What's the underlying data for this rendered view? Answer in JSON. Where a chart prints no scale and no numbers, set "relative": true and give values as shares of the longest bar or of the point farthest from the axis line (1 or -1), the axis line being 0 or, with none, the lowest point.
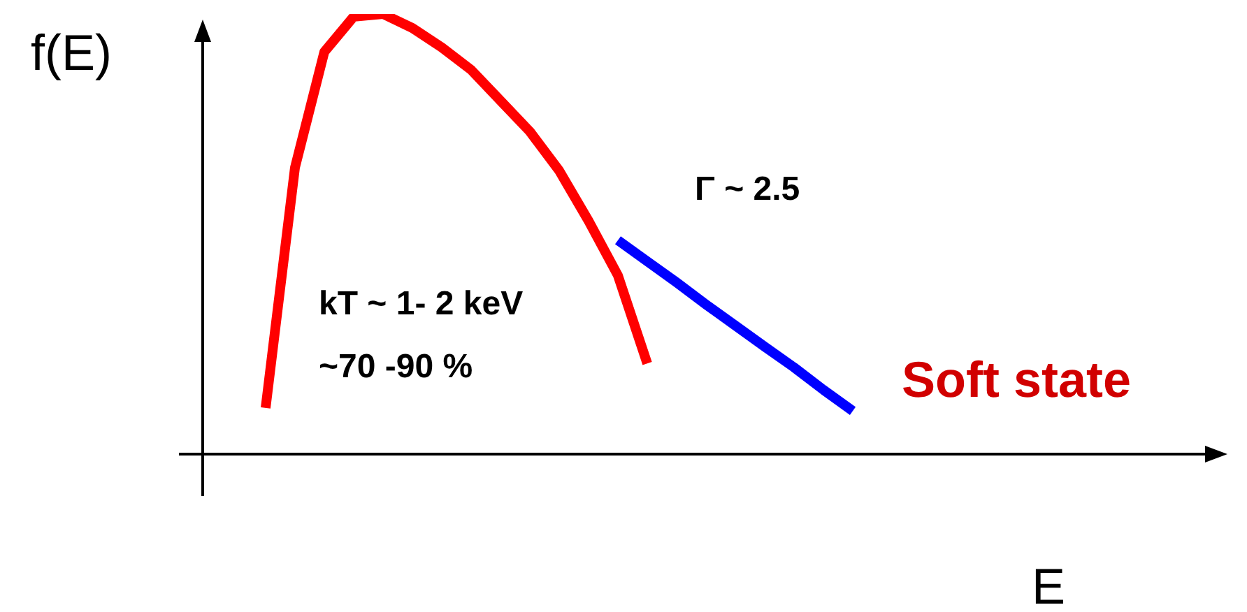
{
  "chart_data": {
    "type": "line",
    "relative": true,
    "xlabel": "E",
    "ylabel": "f(E)",
    "tick_labels": false,
    "legend": false,
    "marker": "none",
    "categories": [
      null,
      null,
      null,
      null,
      null,
      null,
      null,
      null,
      null,
      null,
      null,
      null,
      null,
      null,
      null,
      null,
      null,
      null,
      null,
      null,
      null
    ],
    "series": [
      {
        "color": "#ff0000",
        "values": [
          0.105,
          0.651,
          0.914,
          0.994,
          1,
          0.968,
          0.924,
          0.873,
          0.803,
          0.733,
          0.644,
          0.53,
          0.406,
          0.206,
          null,
          null,
          null,
          null,
          null,
          null,
          null
        ]
      },
      {
        "color": "#0000ff",
        "values": [
          null,
          null,
          null,
          null,
          null,
          null,
          null,
          null,
          null,
          null,
          null,
          null,
          0.486,
          0.438,
          0.39,
          0.34,
          0.292,
          0.244,
          0.197,
          0.146,
          0.098
        ]
      }
    ],
    "annotations": [
      "kT ~ 1- 2 keV",
      "~70 -90 %",
      "Γ ~ 2.5",
      "Soft state"
    ]
  }
}
